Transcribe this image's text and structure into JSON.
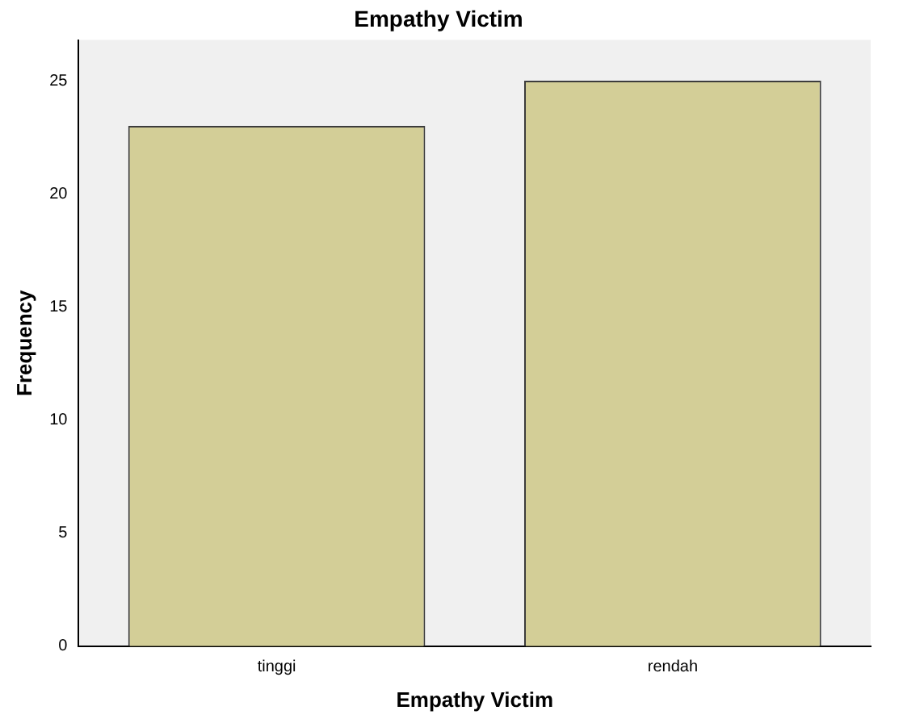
{
  "chart_data": {
    "type": "bar",
    "title": "Empathy Victim",
    "xlabel": "Empathy Victim",
    "ylabel": "Frequency",
    "categories": [
      "tinggi",
      "rendah"
    ],
    "values": [
      23,
      25
    ],
    "color": "#d3ce97",
    "ylim": [
      0,
      26.8
    ],
    "yticks": [
      0,
      5,
      10,
      15,
      20,
      25
    ],
    "grid": false,
    "legend": false
  }
}
